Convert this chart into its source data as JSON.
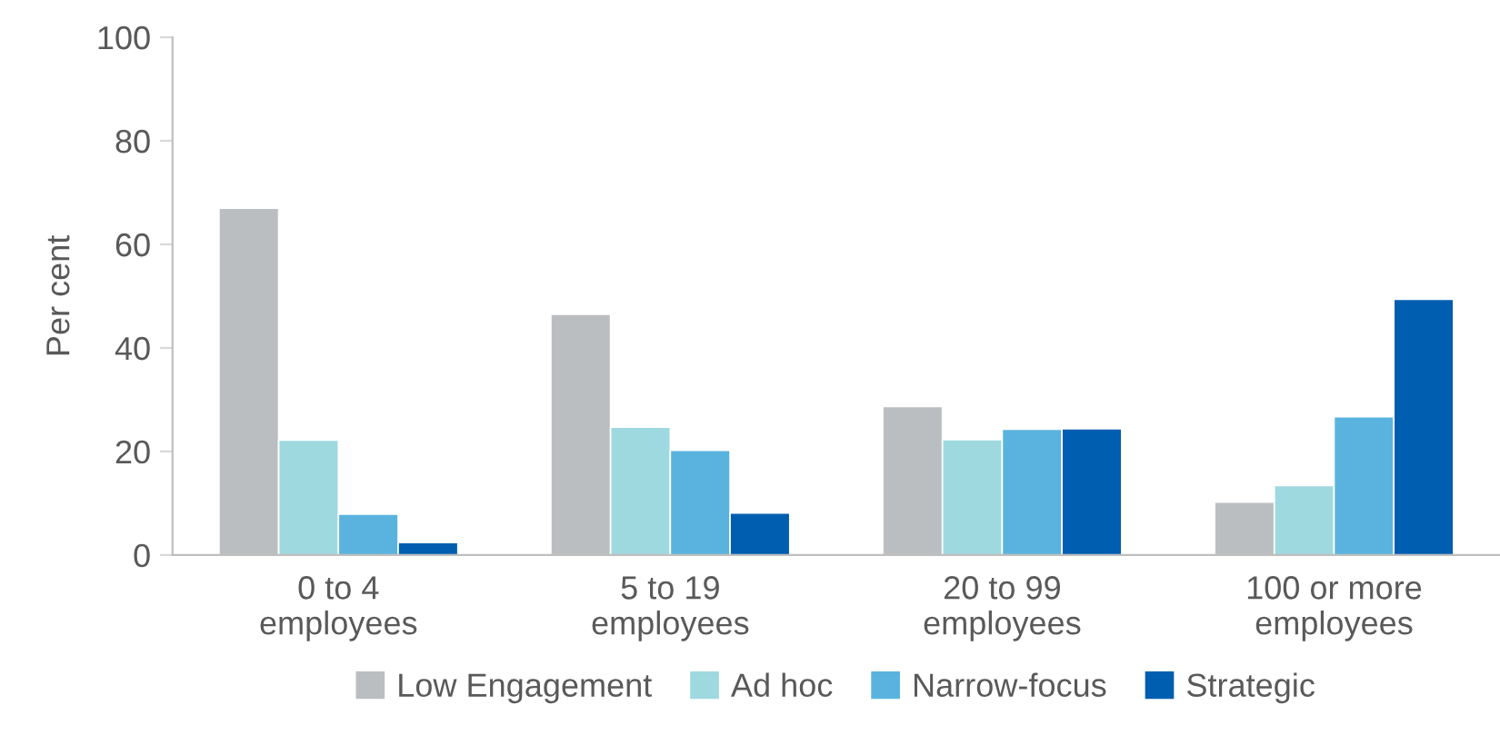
{
  "chart_data": {
    "type": "bar",
    "ylabel": "Per cent",
    "categories": [
      "0 to 4\nemployees",
      "5 to 19\nemployees",
      "20 to 99\nemployees",
      "100 or more\nemployees"
    ],
    "series": [
      {
        "name": "Low Engagement",
        "color": "#bbbec1",
        "values": [
          67,
          46.5,
          28.7,
          10.2
        ]
      },
      {
        "name": "Ad hoc",
        "color": "#9fd9e0",
        "values": [
          22.2,
          24.7,
          22.3,
          13.4
        ]
      },
      {
        "name": "Narrow-focus",
        "color": "#5ab3de",
        "values": [
          7.9,
          20.2,
          24.3,
          26.7
        ]
      },
      {
        "name": "Strategic",
        "color": "#005eb0",
        "values": [
          2.4,
          8.1,
          24.4,
          49.4
        ]
      }
    ],
    "ylim": [
      0,
      100
    ],
    "yticks": [
      0,
      20,
      40,
      60,
      80,
      100
    ],
    "grid": false,
    "legend": "bottom"
  }
}
